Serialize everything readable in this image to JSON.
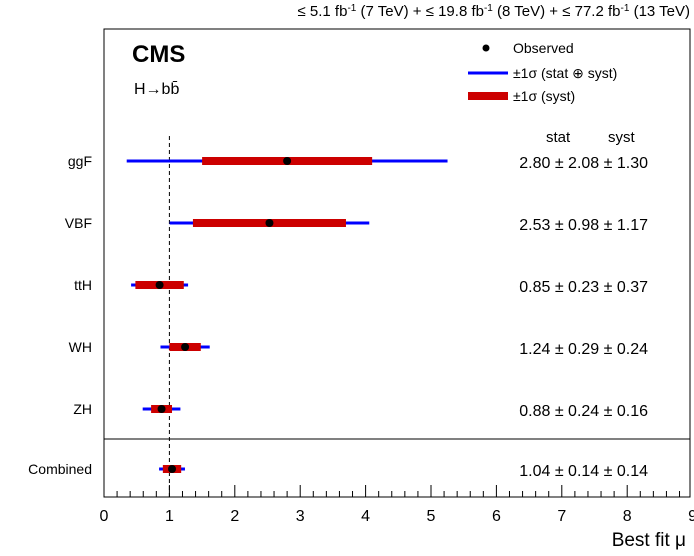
{
  "header": {
    "lumi_parts": [
      {
        "pre": "≤ 5.1 fb",
        "sup": "-1",
        "post": " (7 TeV) + "
      },
      {
        "pre": "≤ 19.8 fb",
        "sup": "-1",
        "post": " (8 TeV) + "
      },
      {
        "pre": "≤ 77.2 fb",
        "sup": "-1",
        "post": " (13 TeV)"
      }
    ]
  },
  "labels": {
    "experiment": "CMS",
    "channel": "H→bb̄",
    "stat_header": "stat",
    "syst_header": "syst"
  },
  "legend": {
    "placement": "top-right",
    "items": [
      {
        "kind": "marker",
        "label": "Observed"
      },
      {
        "kind": "thin-line",
        "label": "±1σ (stat ⊕ syst)"
      },
      {
        "kind": "thick-line",
        "label": "±1σ (syst)"
      }
    ]
  },
  "colors": {
    "total_band": "#0000ff",
    "syst_band": "#cc0000",
    "marker": "#000000"
  },
  "chart_data": {
    "type": "scatter",
    "xlabel": "Best fit μ",
    "xlim": [
      0,
      9
    ],
    "xticks": [
      0,
      1,
      2,
      3,
      4,
      5,
      6,
      7,
      8,
      9
    ],
    "reference_line_x": 1,
    "grid": false,
    "categories": [
      "ggF",
      "VBF",
      "ttH",
      "WH",
      "ZH",
      "Combined"
    ],
    "points": [
      {
        "label": "ggF",
        "mu": 2.8,
        "stat": 2.08,
        "syst": 1.3,
        "text": "2.80 ± 2.08 ± 1.30"
      },
      {
        "label": "VBF",
        "mu": 2.53,
        "stat": 0.98,
        "syst": 1.17,
        "text": "2.53 ± 0.98 ± 1.17"
      },
      {
        "label": "ttH",
        "mu": 0.85,
        "stat": 0.23,
        "syst": 0.37,
        "text": "0.85 ± 0.23 ± 0.37"
      },
      {
        "label": "WH",
        "mu": 1.24,
        "stat": 0.29,
        "syst": 0.24,
        "text": "1.24 ± 0.29 ± 0.24"
      },
      {
        "label": "ZH",
        "mu": 0.88,
        "stat": 0.24,
        "syst": 0.16,
        "text": "0.88 ± 0.24 ± 0.16"
      },
      {
        "label": "Combined",
        "mu": 1.04,
        "stat": 0.14,
        "syst": 0.14,
        "text": "1.04 ± 0.14 ± 0.14"
      }
    ]
  }
}
